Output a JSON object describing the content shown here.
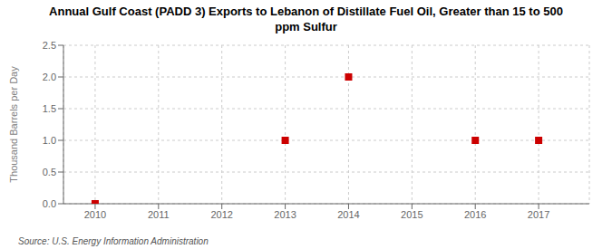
{
  "chart_data": {
    "type": "scatter",
    "title": "Annual Gulf Coast (PADD 3) Exports to Lebanon of Distillate Fuel Oil, Greater than 15 to 500\nppm Sulfur",
    "ylabel": "Thousand Barrels per Day",
    "source": "Source: U.S. Energy Information Administration",
    "x": [
      2010,
      2013,
      2014,
      2016,
      2017
    ],
    "values": [
      0.0,
      1.0,
      2.0,
      1.0,
      1.0
    ],
    "color": "#cc0000",
    "marker": "square",
    "xlim": [
      2009.5,
      2017.8
    ],
    "xticks": [
      2010,
      2011,
      2012,
      2013,
      2014,
      2015,
      2016,
      2017
    ],
    "ylim": [
      0.0,
      2.5
    ],
    "yticks": [
      {
        "value": 0.0,
        "label": "0.0"
      },
      0.5,
      {
        "value": 1.0,
        "label": "1.0"
      },
      1.5,
      {
        "value": 2.0,
        "label": "2.0"
      },
      2.5
    ],
    "grid": true
  }
}
